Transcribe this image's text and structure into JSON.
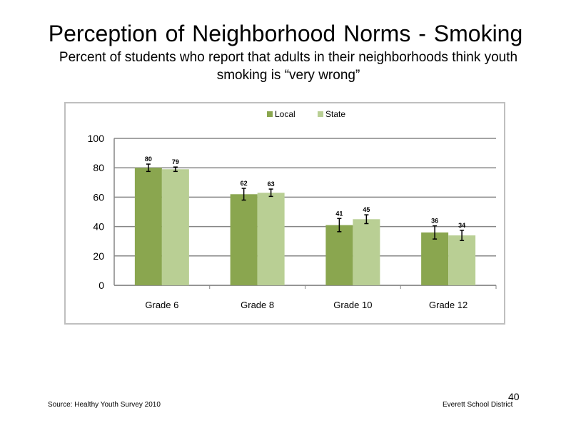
{
  "slide": {
    "title": "Perception  of Neighborhood  Norms - Smoking",
    "subtitle_line1": "Percent of students who report that adults in their neighborhoods think youth",
    "subtitle_line2": "smoking is “very wrong”",
    "page_number": "40",
    "source": "Source: Healthy Youth Survey 2010",
    "organization": "Everett School District"
  },
  "chart_data": {
    "type": "bar",
    "categories": [
      "Grade 6",
      "Grade 8",
      "Grade 10",
      "Grade 12"
    ],
    "series": [
      {
        "name": "Local",
        "values": [
          80,
          62,
          41,
          36
        ],
        "value_labels": [
          "80",
          "62",
          "41",
          "36"
        ],
        "error": [
          2.5,
          4,
          4.5,
          4.5
        ],
        "color": "#8aa64f"
      },
      {
        "name": "State",
        "values": [
          79,
          63,
          45,
          34
        ],
        "value_labels": [
          "79",
          "63",
          "45",
          "34"
        ],
        "error": [
          1.5,
          2.5,
          3,
          3.5
        ],
        "color": "#b9cf94"
      }
    ],
    "ylim": [
      0,
      100
    ],
    "yticks": [
      0,
      20,
      40,
      60,
      80,
      100
    ],
    "legend": "top-center",
    "grid": true,
    "title": "",
    "xlabel": "",
    "ylabel": ""
  }
}
